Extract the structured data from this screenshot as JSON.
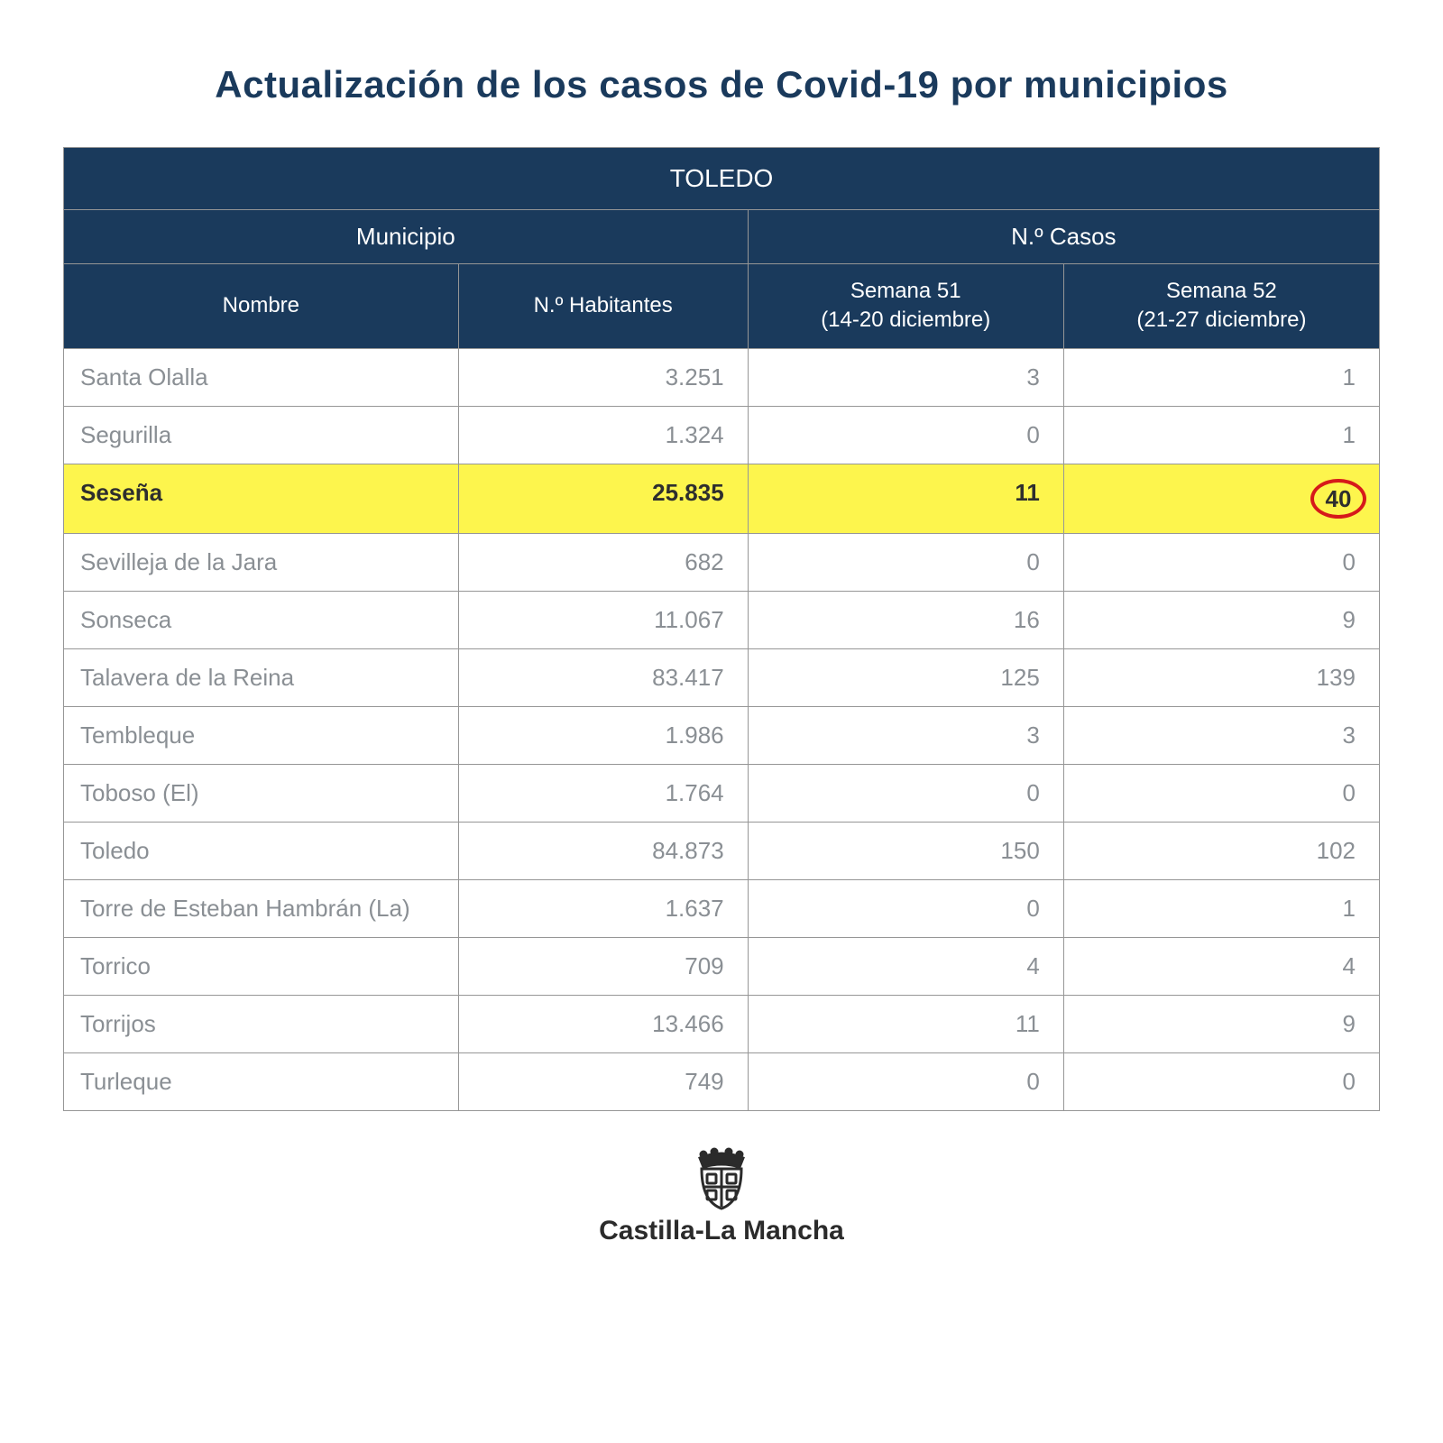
{
  "title": "Actualización de los casos de Covid-19 por municipios",
  "region_header": "TOLEDO",
  "group_municipio": "Municipio",
  "group_casos": "N.º Casos",
  "col_nombre": "Nombre",
  "col_habitantes": "N.º Habitantes",
  "col_sem51_a": "Semana 51",
  "col_sem51_b": "(14-20 diciembre)",
  "col_sem52_a": "Semana 52",
  "col_sem52_b": "(21-27 diciembre)",
  "footer_label": "Castilla-La Mancha",
  "table": {
    "columns": [
      "Nombre",
      "N.º Habitantes",
      "Semana 51",
      "Semana 52"
    ],
    "col_widths_pct": [
      30,
      22,
      24,
      24
    ],
    "header_bg": "#1a3a5c",
    "header_fg": "#ffffff",
    "cell_fg": "#8a8f94",
    "border_color": "#969696",
    "highlight_bg": "#fdf54d",
    "highlight_fg": "#2e2e2e",
    "circle_color": "#d61a1a",
    "rows": [
      {
        "name": "Santa Olalla",
        "hab": "3.251",
        "s51": "3",
        "s52": "1",
        "hl": false,
        "circ": false
      },
      {
        "name": "Segurilla",
        "hab": "1.324",
        "s51": "0",
        "s52": "1",
        "hl": false,
        "circ": false
      },
      {
        "name": "Seseña",
        "hab": "25.835",
        "s51": "11",
        "s52": "40",
        "hl": true,
        "circ": true
      },
      {
        "name": "Sevilleja de la Jara",
        "hab": "682",
        "s51": "0",
        "s52": "0",
        "hl": false,
        "circ": false
      },
      {
        "name": "Sonseca",
        "hab": "11.067",
        "s51": "16",
        "s52": "9",
        "hl": false,
        "circ": false
      },
      {
        "name": "Talavera de la Reina",
        "hab": "83.417",
        "s51": "125",
        "s52": "139",
        "hl": false,
        "circ": false
      },
      {
        "name": "Tembleque",
        "hab": "1.986",
        "s51": "3",
        "s52": "3",
        "hl": false,
        "circ": false
      },
      {
        "name": "Toboso (El)",
        "hab": "1.764",
        "s51": "0",
        "s52": "0",
        "hl": false,
        "circ": false
      },
      {
        "name": "Toledo",
        "hab": "84.873",
        "s51": "150",
        "s52": "102",
        "hl": false,
        "circ": false
      },
      {
        "name": "Torre de Esteban Hambrán (La)",
        "hab": "1.637",
        "s51": "0",
        "s52": "1",
        "hl": false,
        "circ": false
      },
      {
        "name": "Torrico",
        "hab": "709",
        "s51": "4",
        "s52": "4",
        "hl": false,
        "circ": false
      },
      {
        "name": "Torrijos",
        "hab": "13.466",
        "s51": "11",
        "s52": "9",
        "hl": false,
        "circ": false
      },
      {
        "name": "Turleque",
        "hab": "749",
        "s51": "0",
        "s52": "0",
        "hl": false,
        "circ": false
      }
    ]
  }
}
